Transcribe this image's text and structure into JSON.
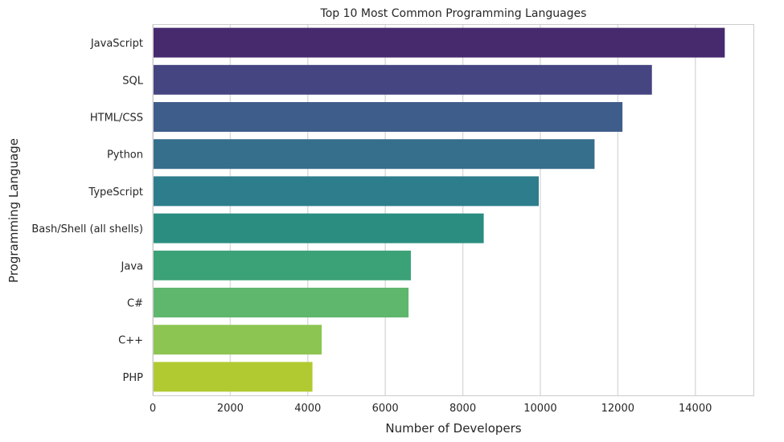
{
  "chart_data": {
    "type": "bar",
    "orientation": "horizontal",
    "title": "Top 10 Most Common Programming Languages",
    "xlabel": "Number of Developers",
    "ylabel": "Programming Language",
    "categories": [
      "JavaScript",
      "SQL",
      "HTML/CSS",
      "Python",
      "TypeScript",
      "Bash/Shell (all shells)",
      "Java",
      "C#",
      "C++",
      "PHP"
    ],
    "values": [
      14760,
      12880,
      12120,
      11400,
      9960,
      8540,
      6660,
      6600,
      4360,
      4120
    ],
    "xlim": [
      0,
      15500
    ],
    "xticks": [
      0,
      2000,
      4000,
      6000,
      8000,
      10000,
      12000,
      14000
    ],
    "xtick_labels": [
      "0",
      "2000",
      "4000",
      "6000",
      "8000",
      "10000",
      "12000",
      "14000"
    ],
    "colors": [
      "#472a6e",
      "#454582",
      "#3f5d8a",
      "#366f8c",
      "#2d7d8c",
      "#2a8d80",
      "#3ba177",
      "#5fb66d",
      "#8dc552",
      "#b1ca32"
    ],
    "grid": "x",
    "legend": "none"
  }
}
